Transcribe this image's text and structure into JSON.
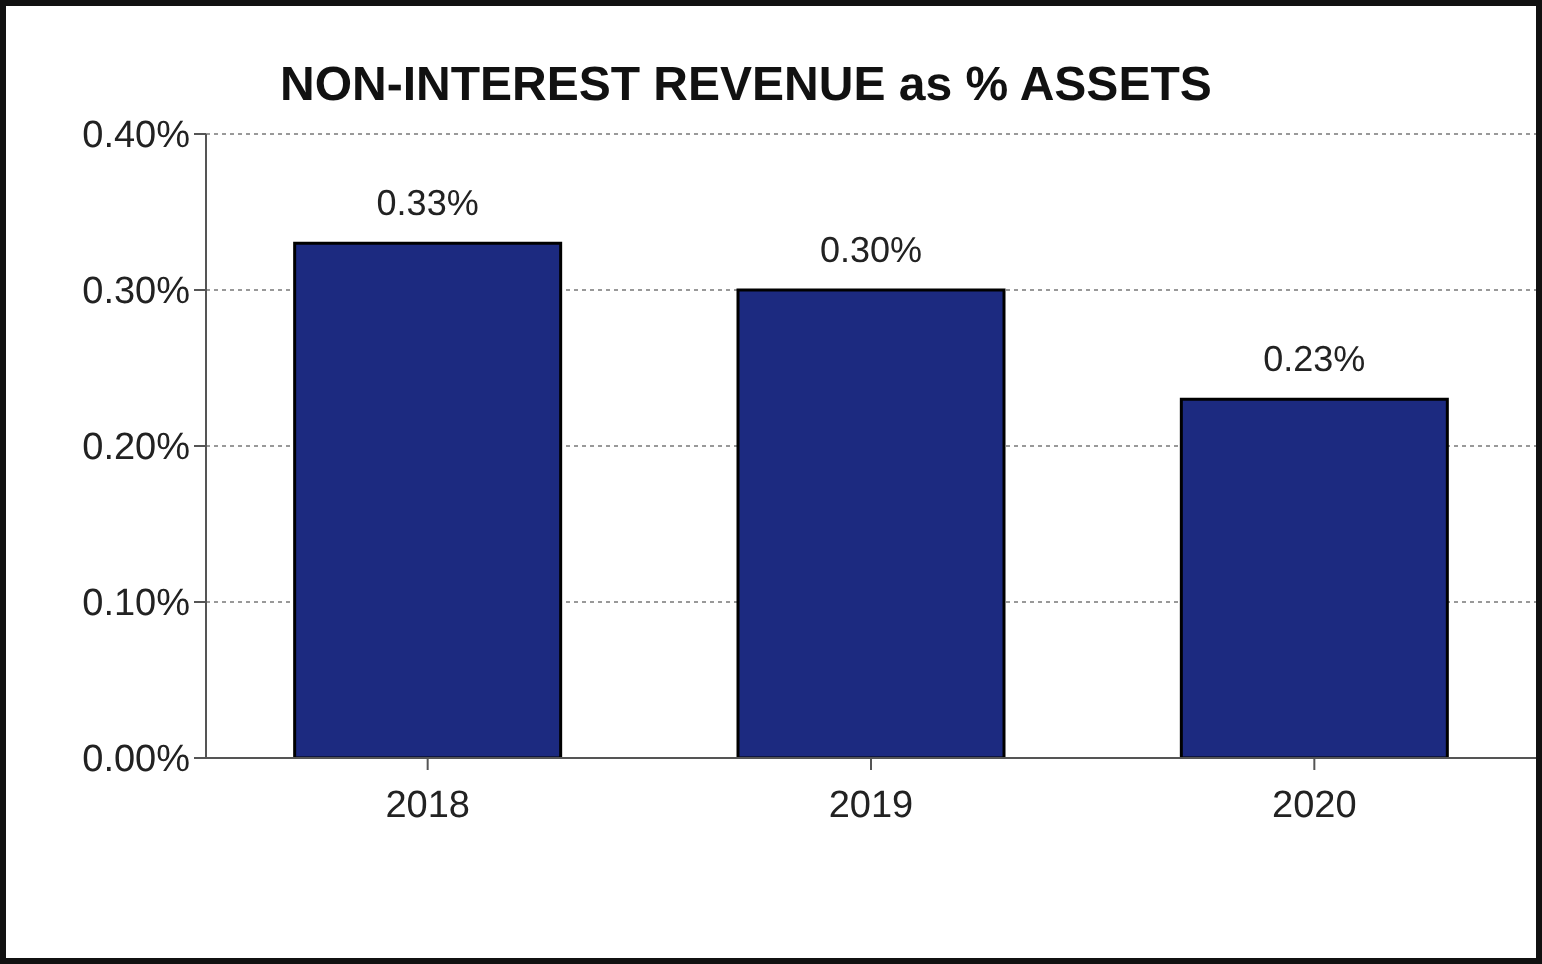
{
  "chart_data": {
    "type": "bar",
    "title": "NON-INTEREST REVENUE as % ASSETS",
    "categories": [
      "2018",
      "2019",
      "2020"
    ],
    "values": [
      0.33,
      0.3,
      0.23
    ],
    "value_labels": [
      "0.33%",
      "0.30%",
      "0.23%"
    ],
    "color": "#1c2a80",
    "ylim": [
      0,
      0.4
    ],
    "yticks": [
      {
        "value": 0,
        "label": "0.00%"
      },
      {
        "value": 0.1,
        "label": "0.10%"
      },
      {
        "value": 0.2,
        "label": "0.20%"
      },
      {
        "value": 0.3,
        "label": "0.30%"
      },
      {
        "value": 0.4,
        "label": "0.40%"
      }
    ],
    "grid": "y"
  }
}
